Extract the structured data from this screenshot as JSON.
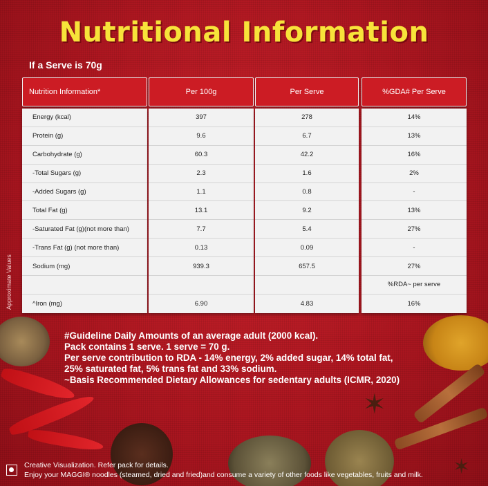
{
  "title": "Nutritional Information",
  "serve_note": "If a Serve is 70g",
  "side_note": "Approximate Values",
  "table": {
    "headers": [
      "Nutrition Information*",
      "Per 100g",
      "Per Serve",
      "%GDA# Per Serve"
    ],
    "rows": [
      [
        "Energy (kcal)",
        "397",
        "278",
        "14%"
      ],
      [
        "Protein (g)",
        "9.6",
        "6.7",
        "13%"
      ],
      [
        "Carbohydrate (g)",
        "60.3",
        "42.2",
        "16%"
      ],
      [
        "-Total Sugars (g)",
        "2.3",
        "1.6",
        "2%"
      ],
      [
        "-Added Sugars (g)",
        "1.1",
        "0.8",
        "-"
      ],
      [
        "Total Fat (g)",
        "13.1",
        "9.2",
        "13%"
      ],
      [
        "-Saturated Fat (g)(not more than)",
        "7.7",
        "5.4",
        "27%"
      ],
      [
        "-Trans Fat (g) (not more than)",
        "0.13",
        "0.09",
        "-"
      ],
      [
        "Sodium (mg)",
        "939.3",
        "657.5",
        "27%"
      ],
      [
        "",
        "",
        "",
        "%RDA~ per serve"
      ],
      [
        "^Iron (mg)",
        "6.90",
        "4.83",
        "16%"
      ]
    ]
  },
  "footnotes": [
    "#Guideline Daily Amounts of an average adult  (2000 kcal).",
    "Pack contains 1 serve. 1 serve = 70 g.",
    "Per serve contribution to RDA - 14% energy, 2% added sugar, 14% total fat,",
    "25% saturated fat, 5% trans fat and 33% sodium.",
    "~Basis Recommended Dietary Allowances for sedentary adults (ICMR, 2020)"
  ],
  "bottom": {
    "line1": "Creative Visualization. Refer pack for details.",
    "line2": "Enjoy your MAGGI® noodles (steamed, dried and fried)and consume a variety of other foods like vegetables, fruits and milk."
  },
  "colors": {
    "background": "#b3141e",
    "title": "#f7e33a",
    "header_cell": "#cc1c24",
    "body_cell": "#f2f2f2"
  }
}
